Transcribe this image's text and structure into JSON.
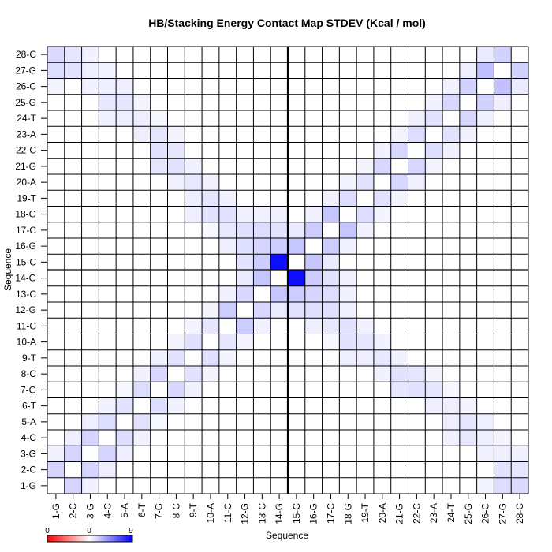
{
  "chart_data": {
    "type": "heatmap",
    "title": "HB/Stacking Energy Contact Map STDEV (Kcal / mol)",
    "xlabel": "Sequence",
    "ylabel": "Sequence",
    "categories": [
      "1-G",
      "2-C",
      "3-G",
      "4-C",
      "5-A",
      "6-T",
      "7-G",
      "8-C",
      "9-T",
      "10-A",
      "11-C",
      "12-G",
      "13-C",
      "14-G",
      "15-C",
      "16-G",
      "17-C",
      "18-G",
      "19-T",
      "20-A",
      "21-G",
      "22-C",
      "23-A",
      "24-T",
      "25-G",
      "26-C",
      "27-G",
      "28-C"
    ],
    "color_range": [
      0,
      9
    ],
    "colorbar_labels": [
      "0",
      "0",
      "9"
    ],
    "colors": {
      "low": "#ff0000",
      "mid": "#ffffff",
      "high": "#0000ff"
    },
    "divider_after": "14-G",
    "cells": [
      [
        1,
        2,
        1.5
      ],
      [
        1,
        3,
        0.5
      ],
      [
        1,
        26,
        0.4
      ],
      [
        1,
        27,
        1.2
      ],
      [
        1,
        28,
        1.3
      ],
      [
        2,
        3,
        1.5
      ],
      [
        2,
        4,
        0.6
      ],
      [
        2,
        27,
        1.0
      ],
      [
        2,
        28,
        0.9
      ],
      [
        3,
        4,
        1.5
      ],
      [
        3,
        5,
        0.6
      ],
      [
        3,
        26,
        0.5
      ],
      [
        3,
        27,
        0.6
      ],
      [
        3,
        28,
        0.5
      ],
      [
        4,
        5,
        1.2
      ],
      [
        4,
        6,
        0.5
      ],
      [
        4,
        24,
        0.5
      ],
      [
        4,
        25,
        0.8
      ],
      [
        4,
        26,
        0.6
      ],
      [
        4,
        27,
        0.4
      ],
      [
        5,
        6,
        1.0
      ],
      [
        5,
        7,
        0.3
      ],
      [
        5,
        24,
        0.6
      ],
      [
        5,
        25,
        0.9
      ],
      [
        5,
        26,
        0.6
      ],
      [
        6,
        7,
        1.2
      ],
      [
        6,
        8,
        0.5
      ],
      [
        6,
        23,
        0.6
      ],
      [
        6,
        24,
        0.6
      ],
      [
        6,
        25,
        0.4
      ],
      [
        7,
        8,
        1.4
      ],
      [
        7,
        9,
        0.5
      ],
      [
        7,
        21,
        0.9
      ],
      [
        7,
        22,
        1.0
      ],
      [
        7,
        23,
        0.9
      ],
      [
        7,
        24,
        0.3
      ],
      [
        8,
        9,
        1.0
      ],
      [
        8,
        10,
        0.4
      ],
      [
        8,
        20,
        0.5
      ],
      [
        8,
        21,
        1.0
      ],
      [
        8,
        22,
        0.9
      ],
      [
        8,
        23,
        0.4
      ],
      [
        9,
        10,
        1.1
      ],
      [
        9,
        11,
        0.4
      ],
      [
        9,
        18,
        0.6
      ],
      [
        9,
        19,
        0.6
      ],
      [
        9,
        20,
        0.8
      ],
      [
        9,
        21,
        0.5
      ],
      [
        10,
        11,
        0.9
      ],
      [
        10,
        12,
        0.4
      ],
      [
        10,
        17,
        0.3
      ],
      [
        10,
        18,
        1.0
      ],
      [
        10,
        19,
        0.9
      ],
      [
        10,
        20,
        0.5
      ],
      [
        11,
        12,
        1.8
      ],
      [
        11,
        13,
        0.5
      ],
      [
        11,
        16,
        0.6
      ],
      [
        11,
        17,
        0.8
      ],
      [
        11,
        18,
        1.0
      ],
      [
        11,
        19,
        0.5
      ],
      [
        12,
        13,
        1.4
      ],
      [
        12,
        14,
        0.7
      ],
      [
        12,
        15,
        1.0
      ],
      [
        12,
        16,
        1.1
      ],
      [
        12,
        17,
        1.1
      ],
      [
        12,
        18,
        0.5
      ],
      [
        13,
        14,
        2.0
      ],
      [
        13,
        15,
        1.8
      ],
      [
        13,
        16,
        1.5
      ],
      [
        13,
        17,
        1.2
      ],
      [
        13,
        18,
        0.5
      ],
      [
        14,
        15,
        8.5
      ],
      [
        14,
        16,
        1.8
      ],
      [
        14,
        17,
        1.0
      ],
      [
        14,
        18,
        0.5
      ],
      [
        15,
        16,
        2.0
      ],
      [
        15,
        17,
        0.7
      ],
      [
        16,
        17,
        1.8
      ],
      [
        16,
        18,
        0.5
      ],
      [
        17,
        18,
        2.0
      ],
      [
        17,
        19,
        0.5
      ],
      [
        18,
        19,
        1.2
      ],
      [
        18,
        20,
        0.4
      ],
      [
        19,
        20,
        1.0
      ],
      [
        19,
        21,
        0.4
      ],
      [
        20,
        21,
        1.4
      ],
      [
        20,
        22,
        0.5
      ],
      [
        21,
        22,
        1.4
      ],
      [
        21,
        23,
        0.4
      ],
      [
        22,
        23,
        1.2
      ],
      [
        22,
        24,
        0.5
      ],
      [
        23,
        24,
        1.0
      ],
      [
        23,
        25,
        0.5
      ],
      [
        24,
        25,
        1.4
      ],
      [
        24,
        26,
        0.5
      ],
      [
        25,
        26,
        1.6
      ],
      [
        25,
        27,
        0.6
      ],
      [
        26,
        27,
        2.2
      ],
      [
        26,
        28,
        0.7
      ],
      [
        27,
        28,
        1.6
      ]
    ]
  }
}
